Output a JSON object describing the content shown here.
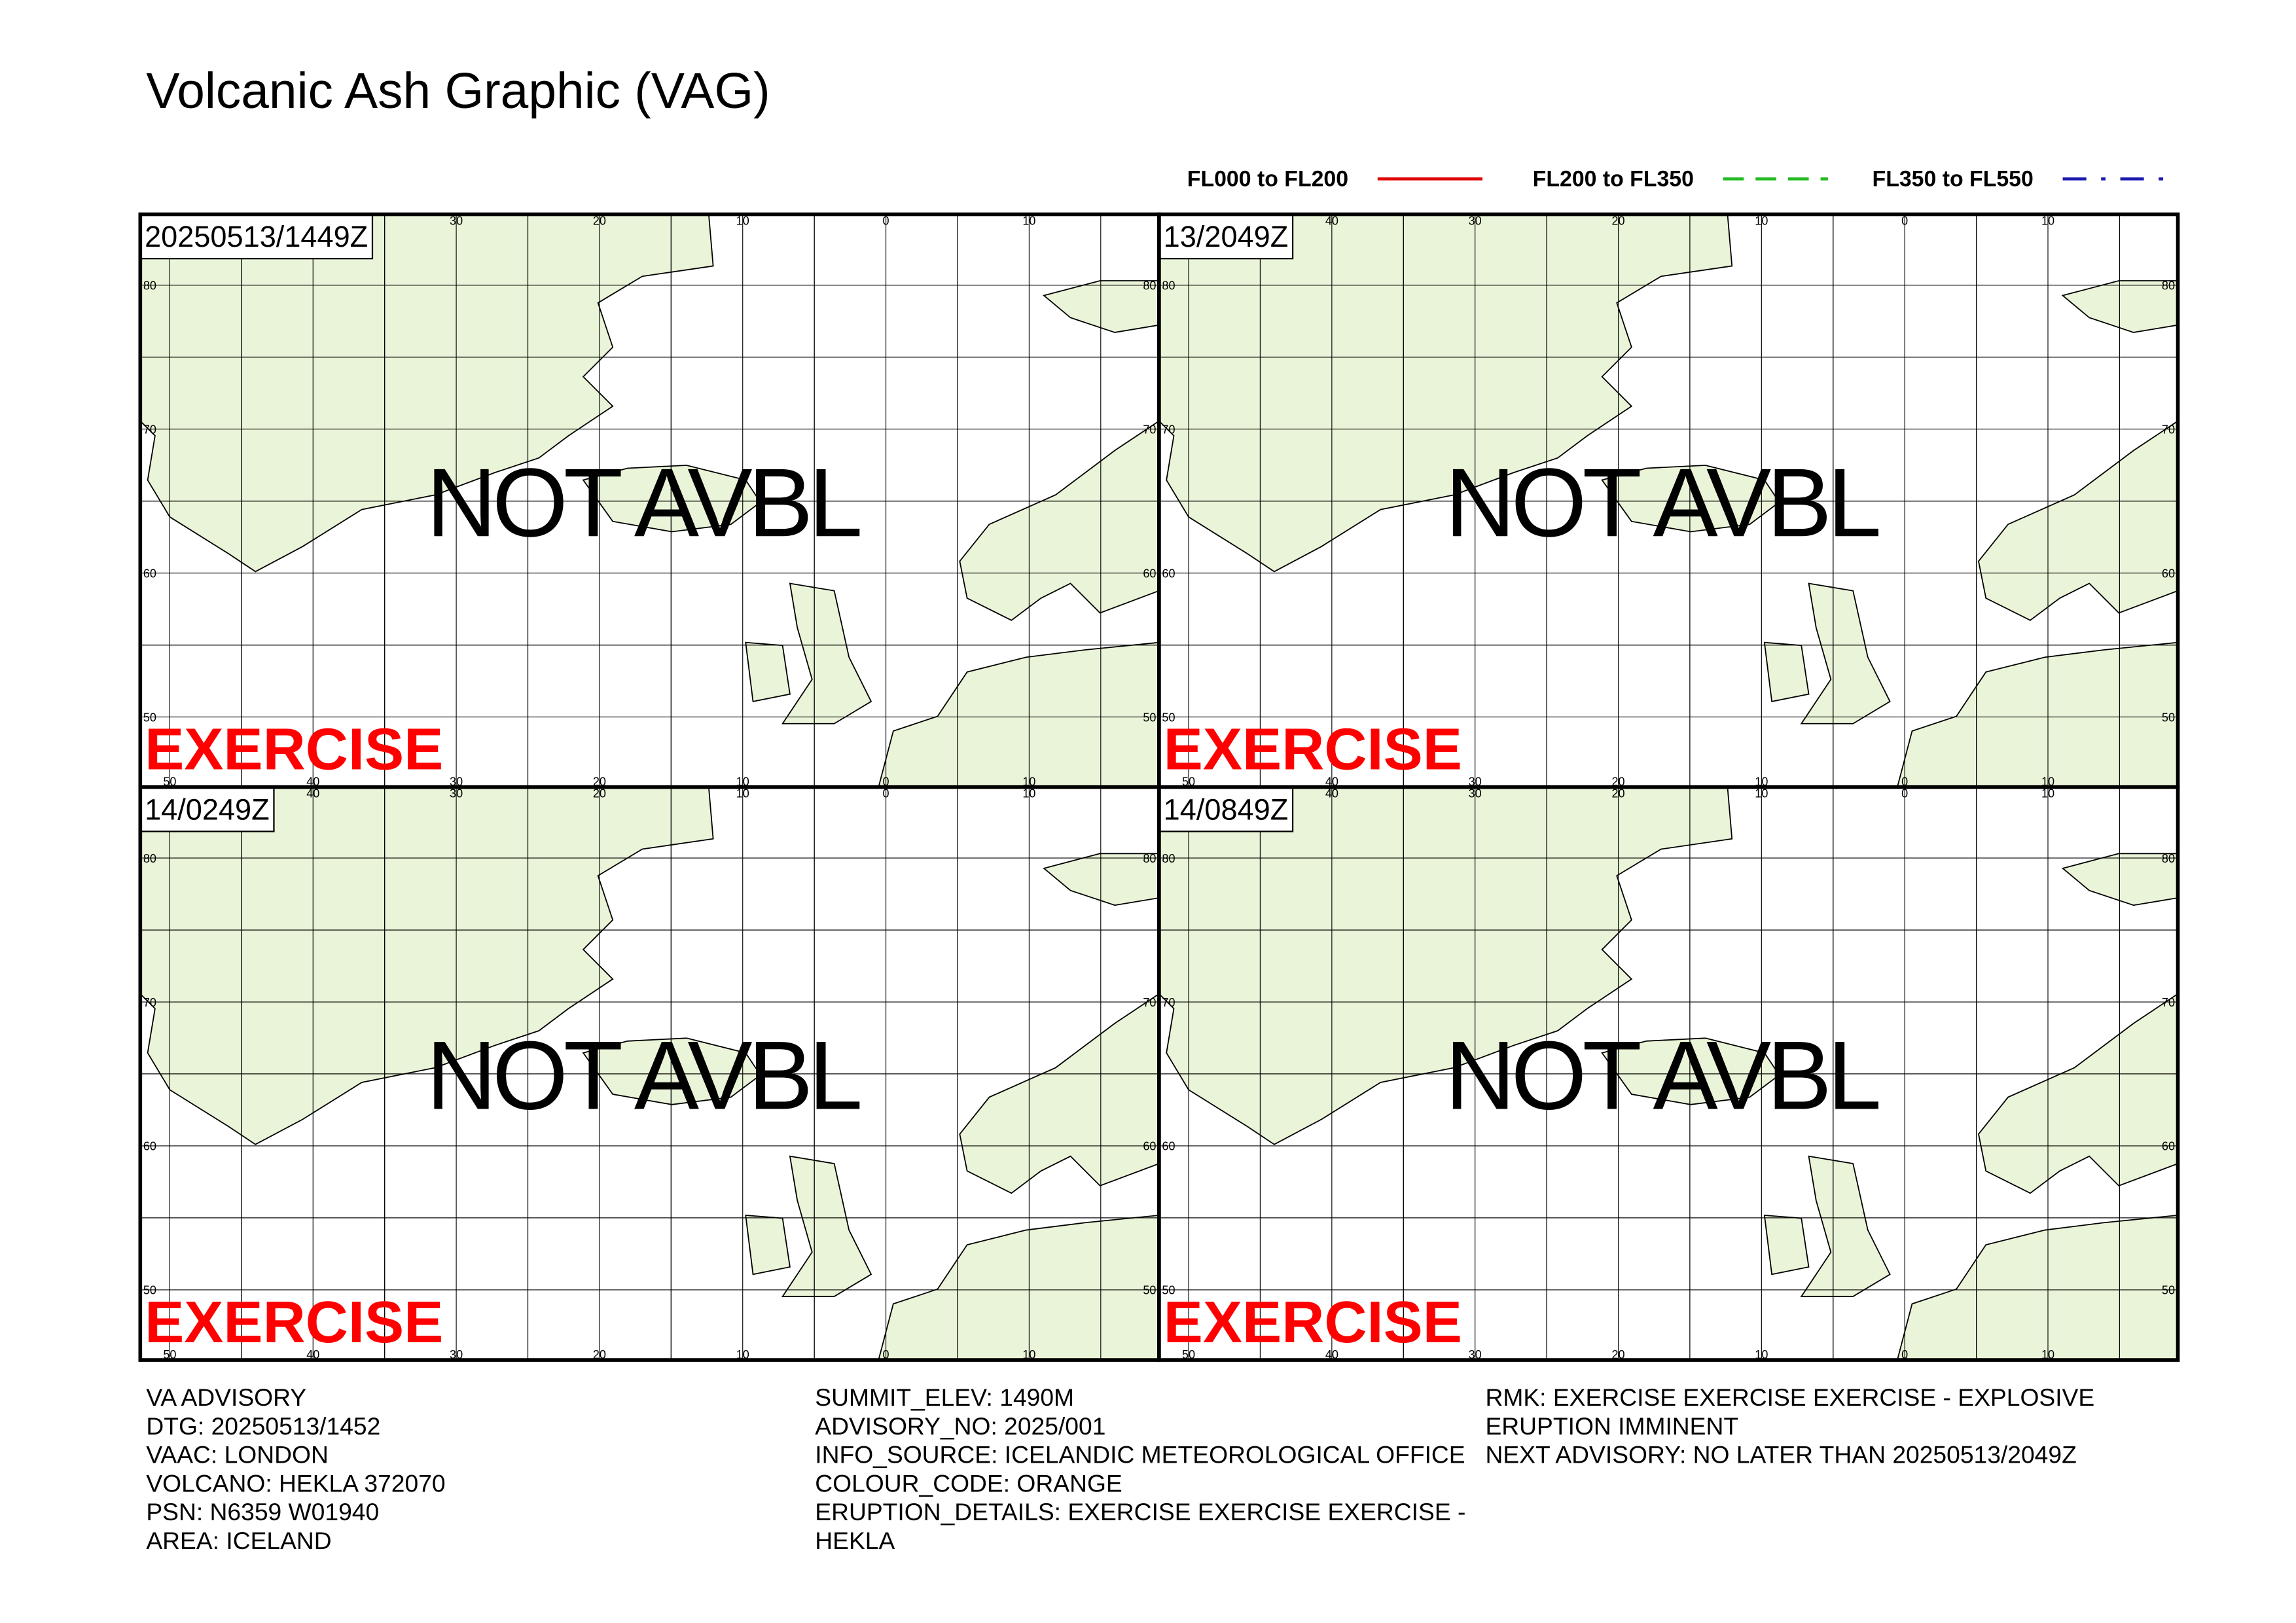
{
  "header": {
    "title": "Volcanic Ash Graphic (VAG)"
  },
  "legend": [
    {
      "label": "FL000 to FL200",
      "color": "#e00000",
      "style": "solid"
    },
    {
      "label": "FL200 to FL350",
      "color": "#22bb22",
      "style": "dashed"
    },
    {
      "label": "FL350 to FL550",
      "color": "#1a1ab0",
      "style": "dashdot"
    }
  ],
  "map": {
    "meridians": [
      {
        "value": -50,
        "label": "50"
      },
      {
        "value": -40,
        "label": "40"
      },
      {
        "value": -30,
        "label": "30"
      },
      {
        "value": -20,
        "label": "20"
      },
      {
        "value": -10,
        "label": "10"
      },
      0,
      10
    ],
    "parallels": [
      80,
      70,
      60,
      50
    ]
  },
  "panels": [
    {
      "time": "20250513/1449Z",
      "status": "NOT AVBL",
      "stamp": "EXERCISE"
    },
    {
      "time": "13/2049Z",
      "status": "NOT AVBL",
      "stamp": "EXERCISE"
    },
    {
      "time": "14/0249Z",
      "status": "NOT AVBL",
      "stamp": "EXERCISE"
    },
    {
      "time": "14/0849Z",
      "status": "NOT AVBL",
      "stamp": "EXERCISE"
    }
  ],
  "advisory": {
    "columns": [
      [
        "VA ADVISORY",
        "DTG: 20250513/1452",
        "VAAC: LONDON",
        "VOLCANO: HEKLA 372070",
        "PSN: N6359 W01940",
        "AREA: ICELAND"
      ],
      [
        "SUMMIT_ELEV: 1490M",
        "ADVISORY_NO: 2025/001",
        "INFO_SOURCE: ICELANDIC METEOROLOGICAL OFFICE",
        "COLOUR_CODE: ORANGE",
        "ERUPTION_DETAILS: EXERCISE EXERCISE EXERCISE -",
        "HEKLA"
      ],
      [
        "RMK: EXERCISE EXERCISE EXERCISE - EXPLOSIVE",
        "ERUPTION IMMINENT",
        "NEXT ADVISORY: NO LATER THAN 20250513/2049Z"
      ]
    ]
  }
}
